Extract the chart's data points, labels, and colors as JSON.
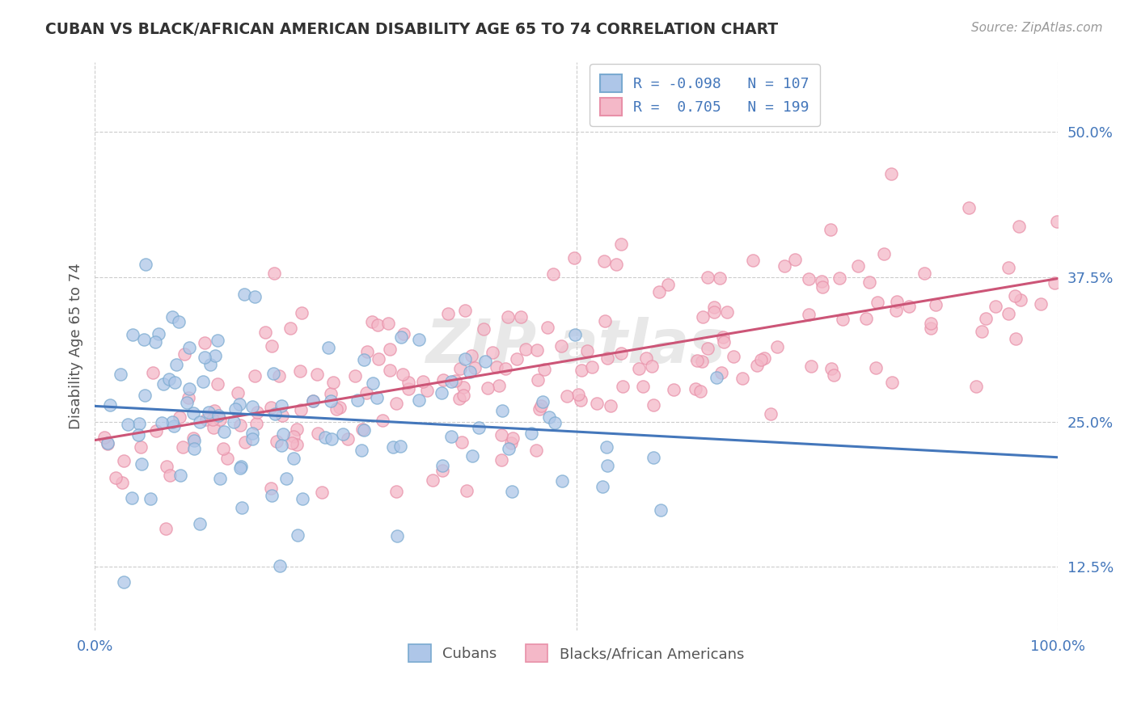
{
  "title": "CUBAN VS BLACK/AFRICAN AMERICAN DISABILITY AGE 65 TO 74 CORRELATION CHART",
  "source_text": "Source: ZipAtlas.com",
  "ylabel": "Disability Age 65 to 74",
  "xlim": [
    0.0,
    1.0
  ],
  "ylim": [
    0.07,
    0.56
  ],
  "yticks": [
    0.125,
    0.25,
    0.375,
    0.5
  ],
  "ytick_labels": [
    "12.5%",
    "25.0%",
    "37.5%",
    "50.0%"
  ],
  "xticks": [
    0.0,
    1.0
  ],
  "xtick_labels": [
    "0.0%",
    "100.0%"
  ],
  "background_color": "#ffffff",
  "grid_color": "#cccccc",
  "cuban_face": "#aec6e8",
  "cuban_edge": "#7aaad0",
  "black_face": "#f4b8c8",
  "black_edge": "#e890a8",
  "trend_cuban": "#4477bb",
  "trend_black": "#cc5577",
  "legend_cuban_label": "R = -0.098   N = 107",
  "legend_black_label": "R =  0.705   N = 199",
  "legend_cuban_label2": "Cubans",
  "legend_black_label2": "Blacks/African Americans",
  "R_cuban": -0.098,
  "N_cuban": 107,
  "R_black": 0.705,
  "N_black": 199,
  "title_color": "#333333",
  "tick_label_color": "#4477bb",
  "source_color": "#999999",
  "ylabel_color": "#555555"
}
